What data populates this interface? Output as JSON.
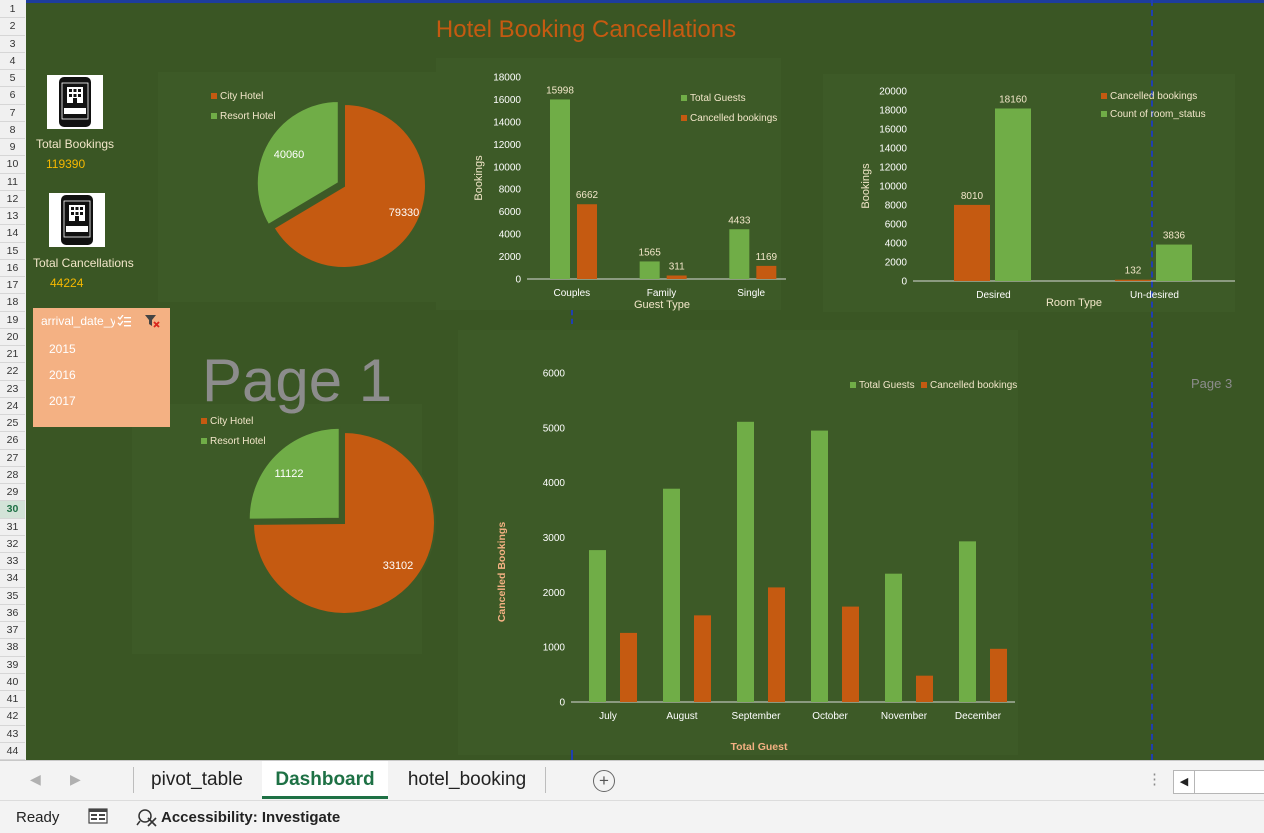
{
  "dashboard": {
    "title": "Hotel Booking Cancellations",
    "kpis": [
      {
        "label": "Total Bookings",
        "value": "119390",
        "icon": "book-app-icon"
      },
      {
        "label": "Total Cancellations",
        "value": "44224",
        "icon": "book-app-icon"
      }
    ],
    "slicer": {
      "title": "arrival_date_year",
      "items": [
        "2015",
        "2016",
        "2017"
      ]
    },
    "watermark_page1": "Page 1",
    "watermark_page3": "Page 3"
  },
  "sheet": {
    "row_numbers": [
      "1",
      "2",
      "3",
      "4",
      "5",
      "6",
      "7",
      "8",
      "9",
      "10",
      "11",
      "12",
      "13",
      "14",
      "15",
      "16",
      "17",
      "18",
      "19",
      "20",
      "21",
      "22",
      "23",
      "24",
      "25",
      "26",
      "27",
      "28",
      "29",
      "30",
      "31",
      "32",
      "33",
      "34",
      "35",
      "36",
      "37",
      "38",
      "39",
      "40",
      "41",
      "42",
      "43",
      "44"
    ],
    "selected_row": "30"
  },
  "tabs": {
    "items": [
      "pivot_table",
      "Dashboard",
      "hotel_booking"
    ],
    "active": "Dashboard",
    "add_icon": "plus-circle-icon"
  },
  "statusbar": {
    "ready": "Ready",
    "accessibility": "Accessibility: Investigate"
  },
  "colors": {
    "orange": "#c55a11",
    "green": "#70ad47",
    "background": "#3a5624",
    "panel": "#3d5a27",
    "title": "#c55a11",
    "kpi_value": "#f5b800",
    "slicer": "#f4b183"
  },
  "chart_data": [
    {
      "type": "pie",
      "labels": [
        "City Hotel",
        "Resort Hotel"
      ],
      "values": [
        79330,
        40060
      ],
      "data_labels": [
        "79330",
        "40060"
      ],
      "legend": "top-left"
    },
    {
      "type": "bar",
      "categories": [
        "Couples",
        "Family",
        "Single"
      ],
      "series": [
        {
          "name": "Total Guests",
          "values": [
            15998,
            1565,
            4433
          ]
        },
        {
          "name": "Cancelled bookings",
          "values": [
            6662,
            311,
            1169
          ]
        }
      ],
      "data_labels": [
        [
          "15998",
          "1565",
          "4433"
        ],
        [
          "6662",
          "311",
          "1169"
        ]
      ],
      "xlabel": "Guest Type",
      "ylabel": "Bookings",
      "ylim": [
        0,
        18000
      ],
      "yticks": [
        "0",
        "2000",
        "4000",
        "6000",
        "8000",
        "10000",
        "12000",
        "14000",
        "16000",
        "18000"
      ],
      "legend": "top-right"
    },
    {
      "type": "bar",
      "categories": [
        "Desired",
        "Un-desired"
      ],
      "series": [
        {
          "name": "Cancelled bookings",
          "values": [
            8010,
            132
          ]
        },
        {
          "name": "Count of room_status",
          "values": [
            18160,
            3836
          ]
        }
      ],
      "data_labels": [
        [
          "8010",
          "132"
        ],
        [
          "18160",
          "3836"
        ]
      ],
      "xlabel": "Room Type",
      "ylabel": "Bookings",
      "ylim": [
        0,
        20000
      ],
      "yticks": [
        "0",
        "2000",
        "4000",
        "6000",
        "8000",
        "10000",
        "12000",
        "14000",
        "16000",
        "18000",
        "20000"
      ],
      "legend": "top-right"
    },
    {
      "type": "pie",
      "labels": [
        "City Hotel",
        "Resort Hotel"
      ],
      "values": [
        33102,
        11122
      ],
      "data_labels": [
        "33102",
        "11122"
      ],
      "legend": "top-left"
    },
    {
      "type": "bar",
      "categories": [
        "July",
        "August",
        "September",
        "October",
        "November",
        "December"
      ],
      "series": [
        {
          "name": "Total Guests",
          "values": [
            2770,
            3890,
            5110,
            4950,
            2340,
            2930
          ]
        },
        {
          "name": "Cancelled bookings",
          "values": [
            1260,
            1580,
            2090,
            1740,
            480,
            970
          ]
        }
      ],
      "xlabel": "Total Guest",
      "ylabel": "Cancelled Bookings",
      "ylim": [
        0,
        6000
      ],
      "yticks": [
        "0",
        "1000",
        "2000",
        "3000",
        "4000",
        "5000",
        "6000"
      ],
      "legend": "top-right"
    }
  ]
}
